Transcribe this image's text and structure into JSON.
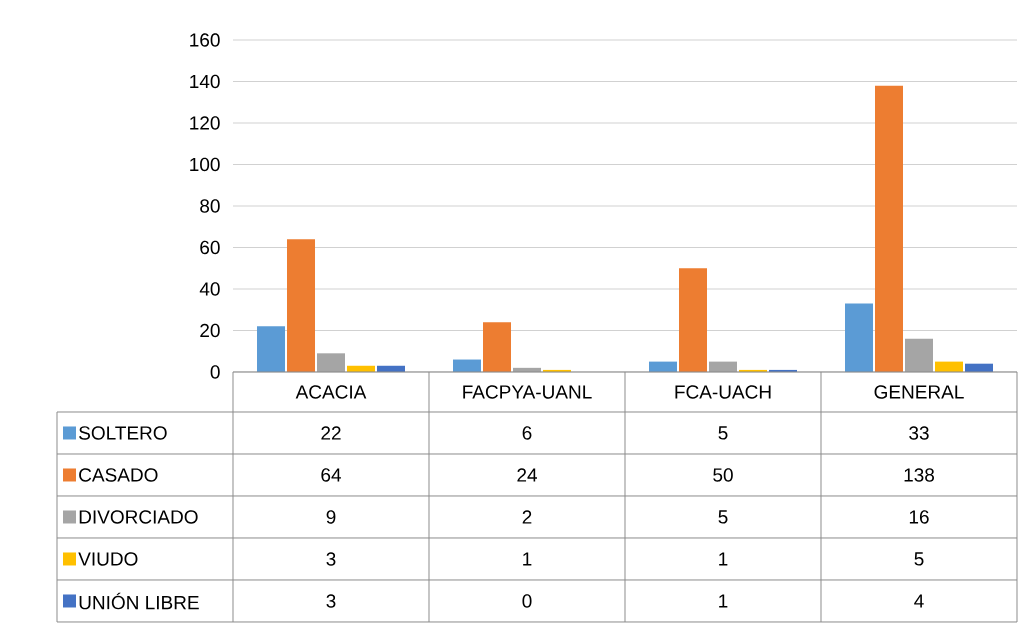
{
  "chart_data": {
    "type": "bar",
    "categories": [
      "ACACIA",
      "FACPYA-UANL",
      "FCA-UACH",
      "GENERAL"
    ],
    "series": [
      {
        "name": "SOLTERO",
        "color": "#5b9bd5",
        "values": [
          22,
          6,
          5,
          33
        ]
      },
      {
        "name": "CASADO",
        "color": "#ed7d31",
        "values": [
          64,
          24,
          50,
          138
        ]
      },
      {
        "name": "DIVORCIADO",
        "color": "#a5a5a5",
        "values": [
          9,
          2,
          5,
          16
        ]
      },
      {
        "name": "VIUDO",
        "color": "#ffc000",
        "values": [
          3,
          1,
          1,
          5
        ]
      },
      {
        "name": "UNIÓN LIBRE",
        "color": "#4472c4",
        "values": [
          3,
          0,
          1,
          4
        ]
      }
    ],
    "ylim": [
      0,
      160
    ],
    "yticks": [
      0,
      20,
      40,
      60,
      80,
      100,
      120,
      140,
      160
    ],
    "grid": "y",
    "legend": "bottom",
    "data_labels": true
  }
}
